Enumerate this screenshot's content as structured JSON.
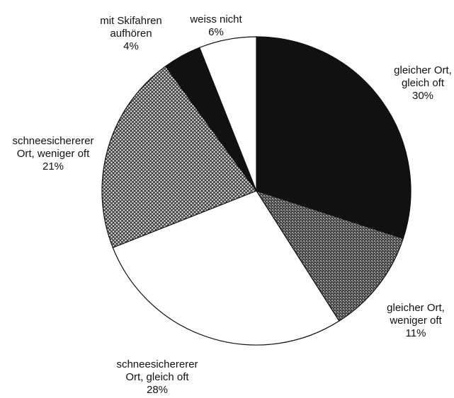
{
  "chart_data": {
    "type": "pie",
    "categories": [
      [
        "gleicher Ort,",
        "gleich oft"
      ],
      [
        "gleicher Ort,",
        "weniger oft"
      ],
      [
        "schneesichererer",
        "Ort, gleich oft"
      ],
      [
        "schneesichererer",
        "Ort, weniger oft"
      ],
      [
        "mit Skifahren",
        "aufhören"
      ],
      [
        "weiss nicht"
      ]
    ],
    "values": [
      30,
      11,
      28,
      21,
      4,
      6
    ],
    "value_labels": [
      "30%",
      "11%",
      "28%",
      "21%",
      "4%",
      "6%"
    ],
    "colors": [
      "#111111",
      "pattern-dense",
      "#ffffff",
      "pattern-cross",
      "#111111",
      "#ffffff"
    ]
  }
}
